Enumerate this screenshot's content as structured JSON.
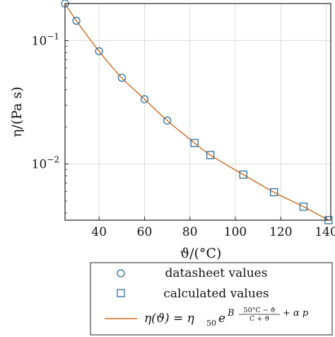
{
  "chart_data": {
    "type": "scatter",
    "xlabel": "ϑ/(°C)",
    "ylabel": "η/(Pa s)",
    "xlim": [
      25,
      142
    ],
    "ylim": [
      0.0035,
      0.2
    ],
    "yscale": "log",
    "grid": true,
    "legend_position": "bottom-outside",
    "x_ticks": [
      40,
      60,
      80,
      100,
      120,
      140
    ],
    "y_ticks": [
      {
        "value": 0.1,
        "label_base": "10",
        "label_exp": "−1"
      },
      {
        "value": 0.01,
        "label_base": "10",
        "label_exp": "−2"
      }
    ],
    "series": [
      {
        "name": "datasheet values",
        "marker": "circle",
        "color": "#2a6f97",
        "x": [
          25,
          30,
          40,
          50,
          60,
          70
        ],
        "y": [
          0.2,
          0.145,
          0.082,
          0.05,
          0.0335,
          0.0225
        ]
      },
      {
        "name": "calculated values",
        "marker": "square",
        "color": "#2a6f97",
        "x": [
          82,
          89,
          103.5,
          117,
          130,
          141
        ],
        "y": [
          0.0148,
          0.0118,
          0.0082,
          0.0059,
          0.0045,
          0.0035
        ]
      },
      {
        "name": "η(ϑ) = η50 e^{B (50°C−ϑ)/(C+ϑ) + α p}",
        "marker": "line",
        "color": "#d2691e",
        "x": [
          25,
          30,
          40,
          50,
          60,
          70,
          82,
          89,
          103.5,
          117,
          130,
          141
        ],
        "y": [
          0.2,
          0.145,
          0.082,
          0.05,
          0.0335,
          0.0225,
          0.0148,
          0.0118,
          0.0082,
          0.0059,
          0.0045,
          0.0035
        ]
      }
    ]
  },
  "legend": {
    "items": [
      {
        "label": "datasheet values"
      },
      {
        "label": "calculated values"
      }
    ],
    "formula": {
      "lhs": "η(ϑ) = η",
      "eta_sub": "50",
      "e": "e",
      "B": "B",
      "num": "50°C − ϑ",
      "den": "C + ϑ",
      "tail": "+ α p"
    }
  },
  "colors": {
    "marker": "#2a6f97",
    "curve": "#d2691e",
    "grid": "#dcdcdc",
    "frame": "#222222"
  }
}
